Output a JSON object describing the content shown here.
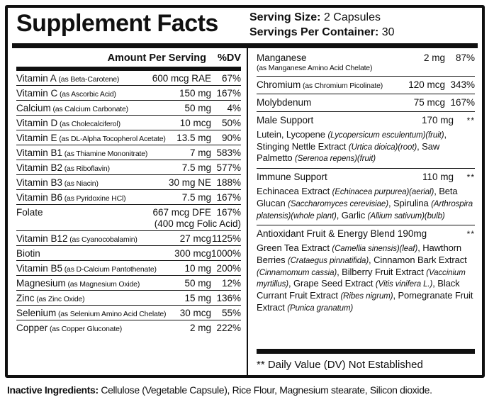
{
  "colors": {
    "ink": "#101010",
    "paper": "#ffffff"
  },
  "title": "Supplement Facts",
  "serving": {
    "size_label": "Serving Size:",
    "size_value": "2 Capsules",
    "container_label": "Servings Per Container:",
    "container_value": "30"
  },
  "left_column": {
    "header_amount": "Amount Per Serving",
    "header_dv": "%DV",
    "rows": [
      {
        "name": "Vitamin A",
        "form": "(as Beta-Carotene)",
        "amount": "600 mcg RAE",
        "dv": "67%"
      },
      {
        "name": "Vitamin C",
        "form": "(as Ascorbic Acid)",
        "amount": "150 mg",
        "dv": "167%"
      },
      {
        "name": "Calcium",
        "form": "(as Calcium Carbonate)",
        "amount": "50 mg",
        "dv": "4%"
      },
      {
        "name": "Vitamin D",
        "form": "(as Cholecalciferol)",
        "amount": "10 mcg",
        "dv": "50%"
      },
      {
        "name": "Vitamin E",
        "form": "(as DL-Alpha Tocopherol Acetate)",
        "amount": "13.5 mg",
        "dv": "90%"
      },
      {
        "name": "Vitamin B1",
        "form": "(as Thiamine Mononitrate)",
        "amount": "7 mg",
        "dv": "583%"
      },
      {
        "name": "Vitamin B2",
        "form": "(as Riboflavin)",
        "amount": "7.5 mg",
        "dv": "577%"
      },
      {
        "name": "Vitamin B3",
        "form": "(as Niacin)",
        "amount": "30 mg NE",
        "dv": "188%"
      },
      {
        "name": "Vitamin B6",
        "form": "(as Pyridoxine HCl)",
        "amount": "7.5 mg",
        "dv": "167%"
      },
      {
        "name": "Folate",
        "form": "",
        "amount": "667 mcg DFE",
        "dv": "167%",
        "amount2": "(400 mcg Folic Acid)"
      },
      {
        "name": "Vitamin B12",
        "form": "(as Cyanocobalamin)",
        "amount": "27 mcg",
        "dv": "1125%"
      },
      {
        "name": "Biotin",
        "form": "",
        "amount": "300 mcg",
        "dv": "1000%"
      },
      {
        "name": "Vitamin B5",
        "form": "(as D-Calcium Pantothenate)",
        "amount": "10 mg",
        "dv": "200%"
      },
      {
        "name": "Magnesium",
        "form": "(as Magnesium Oxide)",
        "amount": "50 mg",
        "dv": "12%"
      },
      {
        "name": "Zinc",
        "form": "(as Zinc Oxide)",
        "amount": "15 mg",
        "dv": "136%"
      },
      {
        "name": "Selenium",
        "form": "(as Selenium Amino Acid Chelate)",
        "amount": "30 mcg",
        "dv": "55%"
      },
      {
        "name": "Copper",
        "form": "(as Copper Gluconate)",
        "amount": "2 mg",
        "dv": "222%"
      }
    ]
  },
  "right_column": {
    "blocks": [
      {
        "name": "Manganese",
        "sub": "(as Manganese Amino Acid Chelate)",
        "amount": "2 mg",
        "dv": "87%"
      },
      {
        "name": "Chromium",
        "form": "(as Chromium Picolinate)",
        "amount": "120 mcg",
        "dv": "343%"
      },
      {
        "name": "Molybdenum",
        "amount": "75 mcg",
        "dv": "167%"
      },
      {
        "name": "Male Support",
        "amount": "170 mg",
        "dv": "**",
        "desc": [
          {
            "t": "Lutein, Lycopene ",
            "i": false
          },
          {
            "t": "(Lycopersicum esculentum)(fruit)",
            "i": true
          },
          {
            "t": ", Stinging Nettle Extract ",
            "i": false
          },
          {
            "t": "(Urtica dioica)(root)",
            "i": true
          },
          {
            "t": ", Saw Palmetto ",
            "i": false
          },
          {
            "t": "(Serenoa repens)(fruit)",
            "i": true
          }
        ]
      },
      {
        "name": "Immune Support",
        "amount": "110 mg",
        "dv": "**",
        "desc": [
          {
            "t": "Echinacea Extract ",
            "i": false
          },
          {
            "t": "(Echinacea purpurea)(aerial)",
            "i": true
          },
          {
            "t": ", Beta Glucan ",
            "i": false
          },
          {
            "t": "(Saccharomyces cerevisiae)",
            "i": true
          },
          {
            "t": ", Spirulina ",
            "i": false
          },
          {
            "t": "(Arthrospira platensis)(whole plant)",
            "i": true
          },
          {
            "t": ", Garlic ",
            "i": false
          },
          {
            "t": "(Allium sativum)(bulb)",
            "i": true
          }
        ]
      },
      {
        "name": "Antioxidant Fruit & Energy Blend 190mg",
        "amount": "",
        "dv": "**",
        "desc": [
          {
            "t": "Green Tea Extract ",
            "i": false
          },
          {
            "t": "(Camellia sinensis)(leaf)",
            "i": true
          },
          {
            "t": ", Hawthorn Berries ",
            "i": false
          },
          {
            "t": "(Crataegus pinnatifida)",
            "i": true
          },
          {
            "t": ", Cinnamon Bark Extract ",
            "i": false
          },
          {
            "t": "(Cinnamomum cassia)",
            "i": true
          },
          {
            "t": ", Bilberry Fruit Extract ",
            "i": false
          },
          {
            "t": "(Vaccinium myrtillus)",
            "i": true
          },
          {
            "t": ", Grape Seed Extract ",
            "i": false
          },
          {
            "t": "(Vitis vinifera L.)",
            "i": true
          },
          {
            "t": ", Black Currant Fruit Extract ",
            "i": false
          },
          {
            "t": "(Ribes nigrum)",
            "i": true
          },
          {
            "t": ", Pomegranate Fruit Extract ",
            "i": false
          },
          {
            "t": "(Punica granatum)",
            "i": true
          }
        ]
      }
    ]
  },
  "footnote": "** Daily Value (DV) Not Established",
  "inactive": {
    "label": "Inactive Ingredients:",
    "text": " Cellulose (Vegetable Capsule), Rice Flour, Magnesium stearate, Silicon dioxide."
  }
}
